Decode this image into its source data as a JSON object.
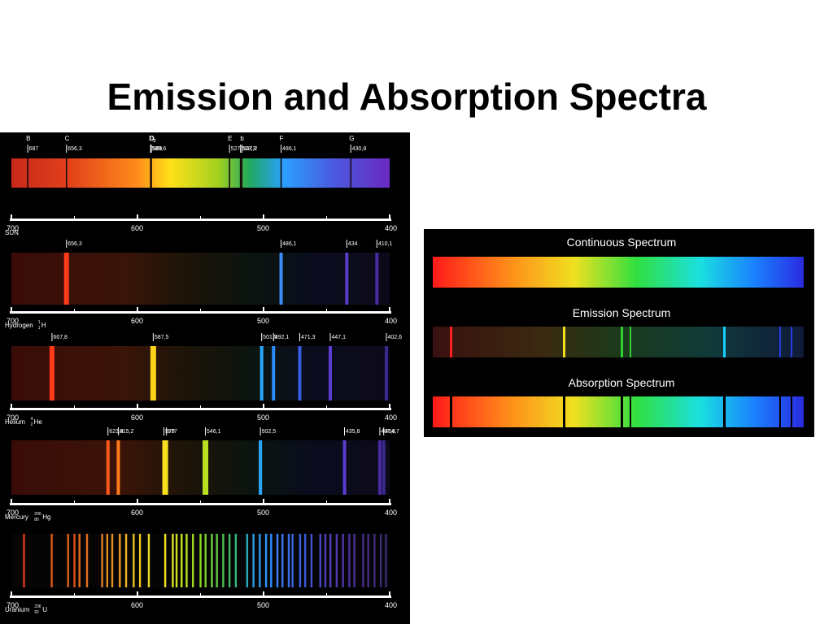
{
  "title": "Emission and Absorption Spectra",
  "colors": {
    "background": "#ffffff",
    "panel": "#000000",
    "scale_line": "#ffffff"
  },
  "left_panel": {
    "scale_ticks": [
      "700",
      "600",
      "500",
      "400"
    ],
    "spectra": [
      {
        "label": "SUN",
        "type": "absorption",
        "line_markers": [
          {
            "letter": "B",
            "value": "687",
            "wavelength": 687
          },
          {
            "letter": "C",
            "value": "656,3",
            "wavelength": 656.3
          },
          {
            "letter": "D1",
            "value": "589,6",
            "wavelength": 589.6
          },
          {
            "letter": "D2",
            "value": "589",
            "wavelength": 589
          },
          {
            "letter": "E",
            "value": "527",
            "wavelength": 527
          },
          {
            "letter": "",
            "value": "518,3",
            "wavelength": 518.3
          },
          {
            "letter": "b",
            "value": "517,2",
            "wavelength": 517.2
          },
          {
            "letter": "F",
            "value": "486,1",
            "wavelength": 486.1
          },
          {
            "letter": "G",
            "value": "430,8",
            "wavelength": 430.8
          }
        ]
      },
      {
        "label": "Hydrogen",
        "symbol": "H",
        "mass": "1",
        "atomic": "1",
        "type": "emission",
        "lines": [
          {
            "value": "656,3",
            "wavelength": 656.3,
            "color": "#ff3b1a"
          },
          {
            "value": "486,1",
            "wavelength": 486.1,
            "color": "#3a8cff"
          },
          {
            "value": "434",
            "wavelength": 434,
            "color": "#5a3cc8"
          },
          {
            "value": "410,1",
            "wavelength": 410.1,
            "color": "#4a2aa0"
          }
        ]
      },
      {
        "label": "Helium",
        "symbol": "He",
        "mass": "4",
        "atomic": "2",
        "type": "emission",
        "lines": [
          {
            "value": "667,8",
            "wavelength": 667.8,
            "color": "#ff3a1a"
          },
          {
            "value": "587,5",
            "wavelength": 587.5,
            "color": "#ffd21a"
          },
          {
            "value": "501,5",
            "wavelength": 501.5,
            "color": "#2aa8ff"
          },
          {
            "value": "492,1",
            "wavelength": 492.1,
            "color": "#2a8cff"
          },
          {
            "value": "471,3",
            "wavelength": 471.3,
            "color": "#3a5ce0"
          },
          {
            "value": "447,1",
            "wavelength": 447.1,
            "color": "#5a3cd0"
          },
          {
            "value": "402,6",
            "wavelength": 402.6,
            "color": "#3a2a90"
          }
        ]
      },
      {
        "label": "Mercury",
        "symbol": "Hg",
        "mass": "200",
        "atomic": "80",
        "type": "emission",
        "lines": [
          {
            "value": "623,4",
            "wavelength": 623.4,
            "color": "#ff5a1a"
          },
          {
            "value": "615,2",
            "wavelength": 615.2,
            "color": "#ff7a1a"
          },
          {
            "value": "579",
            "wavelength": 579,
            "color": "#ffe020"
          },
          {
            "value": "577",
            "wavelength": 577,
            "color": "#f0e020"
          },
          {
            "value": "546,1",
            "wavelength": 546.1,
            "color": "#b8e020"
          },
          {
            "value": "502,5",
            "wavelength": 502.5,
            "color": "#2aa8ff"
          },
          {
            "value": "435,8",
            "wavelength": 435.8,
            "color": "#5a3cd0"
          },
          {
            "value": "407,8",
            "wavelength": 407.8,
            "color": "#4a2aa0"
          },
          {
            "value": "404,7",
            "wavelength": 404.7,
            "color": "#3a2a90"
          }
        ]
      },
      {
        "label": "Uranium",
        "symbol": "U",
        "mass": "236",
        "atomic": "92",
        "type": "emission"
      }
    ]
  },
  "right_panel": {
    "continuous_label": "Continuous Spectrum",
    "emission_label": "Emission Spectrum",
    "absorption_label": "Absorption Spectrum"
  }
}
